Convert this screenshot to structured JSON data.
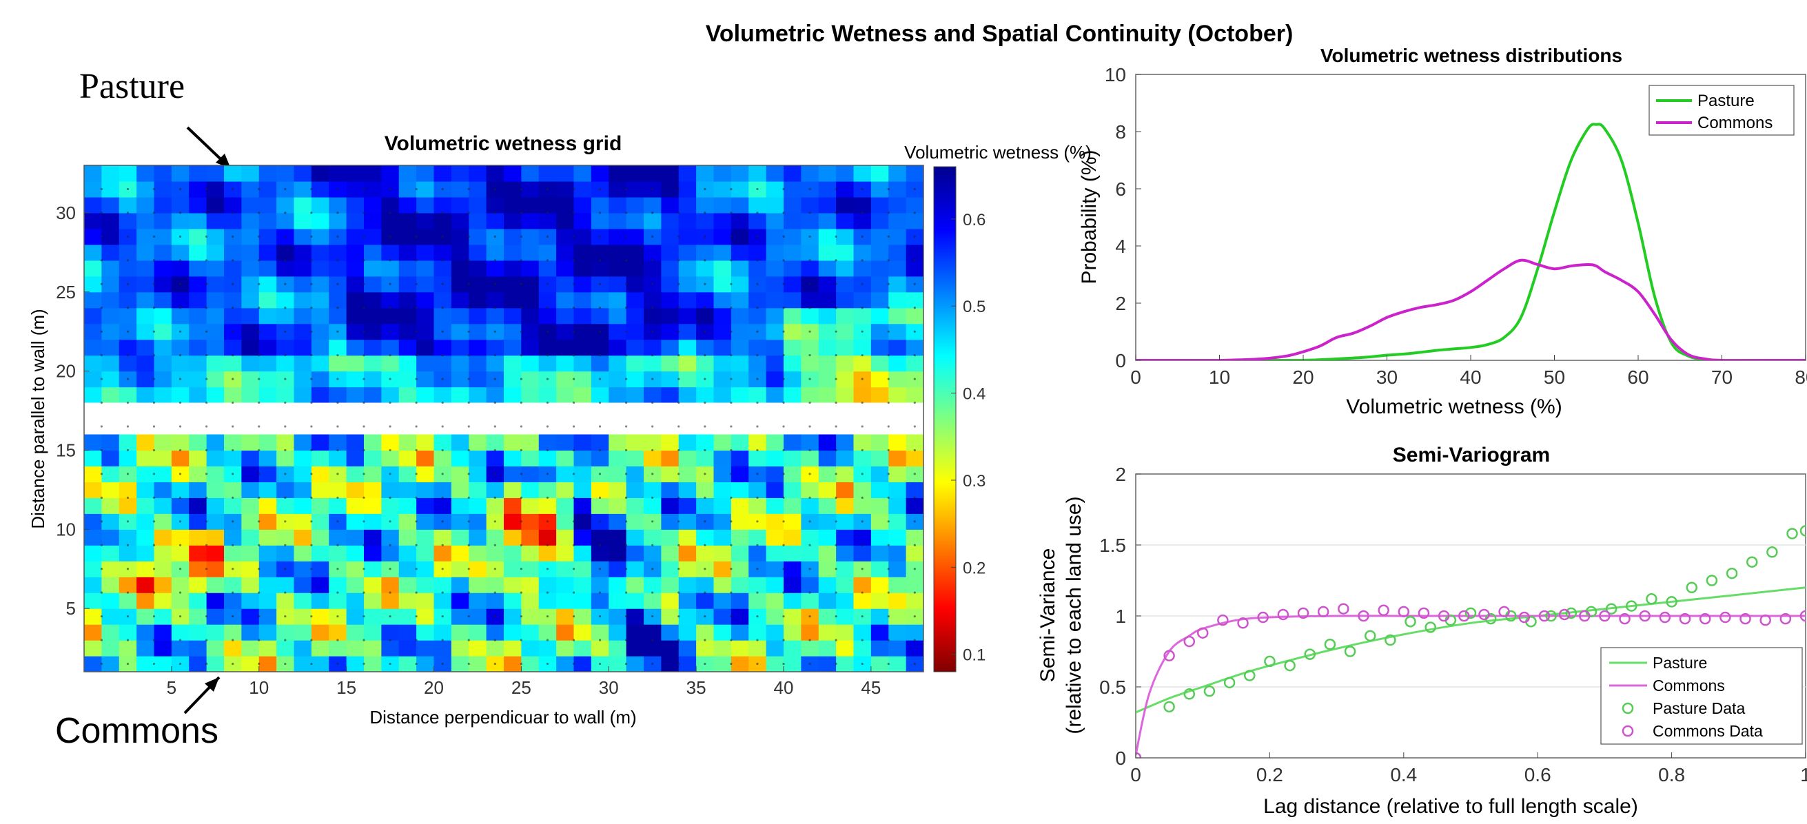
{
  "figure": {
    "title": "Volumetric Wetness and Spatial Continuity (October)",
    "annotations": {
      "top": "Pasture",
      "bottom": "Commons"
    }
  },
  "chart_data": [
    {
      "type": "heatmap",
      "title": "Volumetric wetness grid",
      "xlabel": "Distance perpendicuar to wall (m)",
      "ylabel": "Distance parallel to wall (m)",
      "xlim": [
        0,
        48
      ],
      "ylim": [
        1,
        33
      ],
      "xticks": [
        5,
        10,
        15,
        20,
        25,
        30,
        35,
        40,
        45
      ],
      "yticks": [
        5,
        10,
        15,
        20,
        25,
        30
      ],
      "gap_rows": [
        16,
        18
      ],
      "colorbar": {
        "label": "Volumetric wetness (%)",
        "min": 0.08,
        "max": 0.66,
        "ticks": [
          0.1,
          0.2,
          0.3,
          0.4,
          0.5,
          0.6
        ],
        "colormap": "jet_reversed"
      }
    },
    {
      "type": "line",
      "title": "Volumetric wetness distributions",
      "xlabel": "Volumetric wetness (%)",
      "ylabel": "Probability (%)",
      "xlim": [
        0,
        80
      ],
      "ylim": [
        0,
        10
      ],
      "xticks": [
        0,
        10,
        20,
        30,
        40,
        50,
        60,
        70,
        80
      ],
      "yticks": [
        0,
        2,
        4,
        6,
        8,
        10
      ],
      "legend": "top-right",
      "x": [
        0,
        5,
        10,
        15,
        18,
        20,
        22,
        24,
        26,
        28,
        30,
        32,
        34,
        36,
        38,
        40,
        42,
        44,
        46,
        48,
        50,
        52,
        54,
        55,
        56,
        58,
        60,
        62,
        64,
        66,
        68,
        70,
        75,
        80
      ],
      "series": [
        {
          "name": "Pasture",
          "color": "#22cc22",
          "values": [
            0,
            0,
            0,
            0,
            0,
            0,
            0.02,
            0.05,
            0.08,
            0.12,
            0.18,
            0.22,
            0.28,
            0.35,
            0.4,
            0.45,
            0.55,
            0.8,
            1.5,
            3.2,
            5.2,
            7.0,
            8.1,
            8.25,
            8.1,
            7.0,
            4.8,
            2.2,
            0.6,
            0.15,
            0.03,
            0,
            0,
            0
          ]
        },
        {
          "name": "Commons",
          "color": "#cc22cc",
          "values": [
            0,
            0,
            0,
            0.05,
            0.15,
            0.3,
            0.5,
            0.8,
            0.95,
            1.2,
            1.5,
            1.7,
            1.85,
            1.95,
            2.1,
            2.4,
            2.8,
            3.2,
            3.5,
            3.35,
            3.2,
            3.3,
            3.35,
            3.3,
            3.1,
            2.8,
            2.4,
            1.6,
            0.7,
            0.2,
            0.05,
            0,
            0,
            0
          ]
        }
      ]
    },
    {
      "type": "scatter",
      "title": "Semi-Variogram",
      "xlabel": "Lag distance (relative to full length scale)",
      "ylabel": "Semi-Variance",
      "ylabel2": "(relative to each land use)",
      "xlim": [
        0,
        1
      ],
      "ylim": [
        0,
        2
      ],
      "xticks": [
        0,
        0.2,
        0.4,
        0.6,
        0.8,
        1
      ],
      "xtick_labels": [
        "0",
        "0.2",
        "0.4",
        "0.6",
        "0.8",
        "1"
      ],
      "yticks": [
        0,
        0.5,
        1,
        1.5,
        2
      ],
      "ytick_labels": [
        "0",
        "0.5",
        "1",
        "1.5",
        "2"
      ],
      "grid": "horizontal",
      "legend": "bottom-right",
      "series": [
        {
          "name": "Pasture",
          "kind": "line",
          "color": "#66dd66",
          "x": [
            0,
            0.05,
            0.1,
            0.15,
            0.2,
            0.3,
            0.4,
            0.5,
            0.6,
            0.7,
            0.8,
            0.9,
            1.0
          ],
          "y": [
            0.32,
            0.42,
            0.5,
            0.58,
            0.65,
            0.77,
            0.87,
            0.95,
            1.0,
            1.05,
            1.1,
            1.15,
            1.2
          ]
        },
        {
          "name": "Commons",
          "kind": "line",
          "color": "#dd66dd",
          "x": [
            0,
            0.02,
            0.05,
            0.08,
            0.1,
            0.15,
            0.2,
            0.3,
            0.4,
            0.5,
            0.6,
            0.8,
            1.0
          ],
          "y": [
            0.02,
            0.45,
            0.75,
            0.86,
            0.91,
            0.97,
            0.99,
            1.0,
            1.0,
            1.0,
            1.0,
            1.0,
            1.0
          ]
        },
        {
          "name": "Pasture Data",
          "kind": "points",
          "color": "#55cc55",
          "x": [
            0,
            0.05,
            0.08,
            0.11,
            0.14,
            0.17,
            0.2,
            0.23,
            0.26,
            0.29,
            0.32,
            0.35,
            0.38,
            0.41,
            0.44,
            0.47,
            0.5,
            0.53,
            0.56,
            0.59,
            0.62,
            0.65,
            0.68,
            0.71,
            0.74,
            0.77,
            0.8,
            0.83,
            0.86,
            0.89,
            0.92,
            0.95,
            0.98,
            1.0
          ],
          "y": [
            0,
            0.36,
            0.45,
            0.47,
            0.53,
            0.58,
            0.68,
            0.65,
            0.73,
            0.8,
            0.75,
            0.86,
            0.83,
            0.96,
            0.92,
            0.97,
            1.02,
            0.98,
            1.0,
            0.96,
            1.0,
            1.02,
            1.03,
            1.05,
            1.07,
            1.12,
            1.1,
            1.2,
            1.25,
            1.3,
            1.38,
            1.45,
            1.58,
            1.6
          ]
        },
        {
          "name": "Commons Data",
          "kind": "points",
          "color": "#cc55cc",
          "x": [
            0,
            0.05,
            0.08,
            0.1,
            0.13,
            0.16,
            0.19,
            0.22,
            0.25,
            0.28,
            0.31,
            0.34,
            0.37,
            0.4,
            0.43,
            0.46,
            0.49,
            0.52,
            0.55,
            0.58,
            0.61,
            0.64,
            0.67,
            0.7,
            0.73,
            0.76,
            0.79,
            0.82,
            0.85,
            0.88,
            0.91,
            0.94,
            0.97,
            1.0
          ],
          "y": [
            0,
            0.72,
            0.82,
            0.88,
            0.97,
            0.95,
            0.99,
            1.01,
            1.02,
            1.03,
            1.05,
            1.0,
            1.04,
            1.03,
            1.02,
            1.0,
            1.0,
            1.01,
            1.03,
            0.99,
            1.0,
            1.01,
            1.0,
            1.0,
            0.98,
            1.0,
            0.99,
            0.98,
            0.98,
            0.99,
            0.98,
            0.97,
            0.98,
            1.0
          ]
        }
      ]
    }
  ]
}
